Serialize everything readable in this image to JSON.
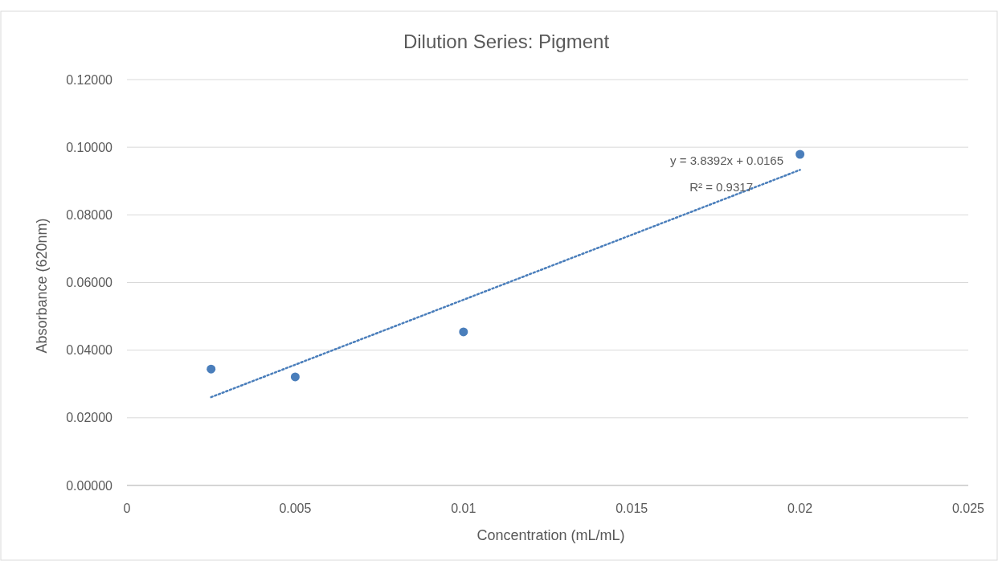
{
  "chart_data": {
    "type": "scatter",
    "title": "Dilution Series:  Pigment",
    "xlabel": "Concentration (mL/mL)",
    "ylabel": "Absorbance (620nm)",
    "xlim": [
      0,
      0.025
    ],
    "xticks": [
      0,
      0.005,
      0.01,
      0.015,
      0.02,
      0.025
    ],
    "ylim": [
      0,
      0.12
    ],
    "yticks": [
      {
        "value": 0,
        "label": "0.00000"
      },
      {
        "value": 0.02,
        "label": "0.02000"
      },
      {
        "value": 0.04,
        "label": "0.04000"
      },
      {
        "value": 0.06,
        "label": "0.06000"
      },
      {
        "value": 0.08,
        "label": "0.08000"
      },
      {
        "value": 0.1,
        "label": "0.10000"
      },
      {
        "value": 0.12,
        "label": "0.12000"
      }
    ],
    "grid": "y",
    "series": [
      {
        "color": "#4a7ebb",
        "marker": "circle",
        "x": [
          0.0025,
          0.005,
          0.01,
          0.02
        ],
        "values": [
          0.0344,
          0.0321,
          0.0454,
          0.0979
        ]
      },
      {
        "type": "line",
        "color": "#4a7ebb",
        "marker": "none",
        "line_style": "dotted",
        "x": [
          0.0025,
          0.02
        ],
        "values": [
          0.0261,
          0.0933
        ]
      }
    ],
    "annotations": [
      "y = 3.8392x + 0.0165",
      "R² = 0.9317"
    ]
  }
}
